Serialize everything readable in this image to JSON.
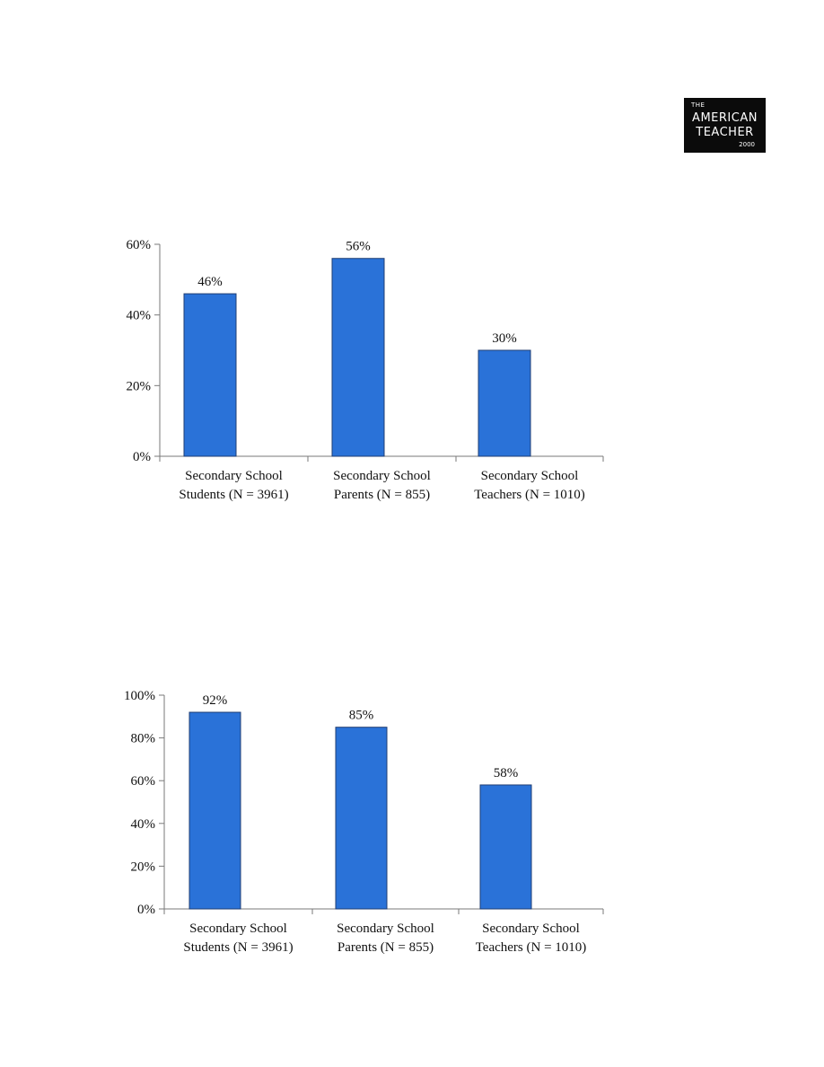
{
  "logo": {
    "line0": "THE",
    "line1": "AMERICAN",
    "line2": "TEACHER",
    "year": "2000"
  },
  "chart_data": [
    {
      "type": "bar",
      "categories": [
        "Secondary School Students (N = 3961)",
        "Secondary School Parents (N = 855)",
        "Secondary School Teachers (N = 1010)"
      ],
      "category_lines": [
        [
          "Secondary School",
          "Students (N = 3961)"
        ],
        [
          "Secondary School",
          "Parents (N = 855)"
        ],
        [
          "Secondary School",
          "Teachers (N = 1010)"
        ]
      ],
      "values": [
        46,
        56,
        30
      ],
      "data_labels": [
        "46%",
        "56%",
        "30%"
      ],
      "ylim": [
        0,
        60
      ],
      "yticks": [
        0,
        20,
        40,
        60
      ],
      "ytick_labels": [
        "0%",
        "20%",
        "40%",
        "60%"
      ],
      "color": "#2a72d8",
      "grid": false
    },
    {
      "type": "bar",
      "categories": [
        "Secondary School Students (N = 3961)",
        "Secondary School Parents (N = 855)",
        "Secondary School Teachers (N = 1010)"
      ],
      "category_lines": [
        [
          "Secondary School",
          "Students (N = 3961)"
        ],
        [
          "Secondary School",
          "Parents (N = 855)"
        ],
        [
          "Secondary School",
          "Teachers (N = 1010)"
        ]
      ],
      "values": [
        92,
        85,
        58
      ],
      "data_labels": [
        "92%",
        "85%",
        "58%"
      ],
      "ylim": [
        0,
        100
      ],
      "yticks": [
        0,
        20,
        40,
        60,
        80,
        100
      ],
      "ytick_labels": [
        "0%",
        "20%",
        "40%",
        "60%",
        "80%",
        "100%"
      ],
      "color": "#2a72d8",
      "grid": false
    }
  ]
}
